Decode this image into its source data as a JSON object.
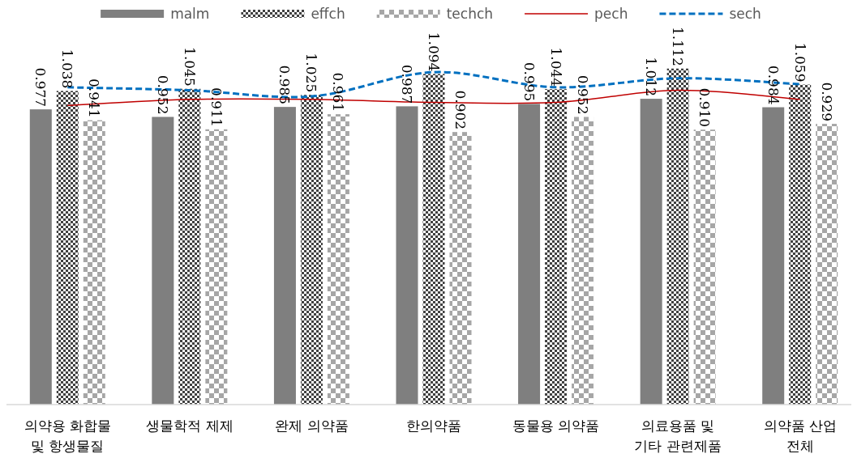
{
  "chart_data": {
    "type": "bar",
    "categories": [
      "의약용 화합물 및 항생물질",
      "생물학적 제제",
      "완제 의약품",
      "한의약품",
      "동물용 의약품",
      "의료용품 및 기타 관련제품",
      "의약품 산업 전체"
    ],
    "series": [
      {
        "name": "malm",
        "color": "#7f7f7f",
        "values": [
          0.977,
          0.952,
          0.985,
          0.987,
          0.995,
          1.012,
          0.984
        ],
        "value_labels": [
          "0.977",
          "0.952",
          "0.985",
          "0.987",
          "0.995",
          "1.012",
          "0.984"
        ]
      },
      {
        "name": "effch",
        "color": "#404040",
        "values": [
          1.038,
          1.045,
          1.025,
          1.094,
          1.044,
          1.112,
          1.059
        ],
        "value_labels": [
          "1.038",
          "1.045",
          "1.025",
          "1.094",
          "1.044",
          "1.112",
          "1.059"
        ]
      },
      {
        "name": "techch",
        "color": "#a6a6a6",
        "values": [
          0.941,
          0.911,
          0.961,
          0.902,
          0.952,
          0.91,
          0.929
        ],
        "value_labels": [
          "0.941",
          "0.911",
          "0.961",
          "0.902",
          "0.952",
          "0.910",
          "0.929"
        ]
      },
      {
        "name": "pech",
        "type": "line",
        "color": "#c00000",
        "line_style": "solid",
        "values": [
          0.99,
          1.01,
          1.01,
          1.0,
          1.0,
          1.04,
          1.01
        ]
      },
      {
        "name": "sech",
        "type": "line",
        "color": "#0070c0",
        "line_style": "dashed",
        "values": [
          1.05,
          1.04,
          1.02,
          1.1,
          1.05,
          1.08,
          1.06
        ]
      }
    ],
    "legend": "top",
    "grid": false
  }
}
